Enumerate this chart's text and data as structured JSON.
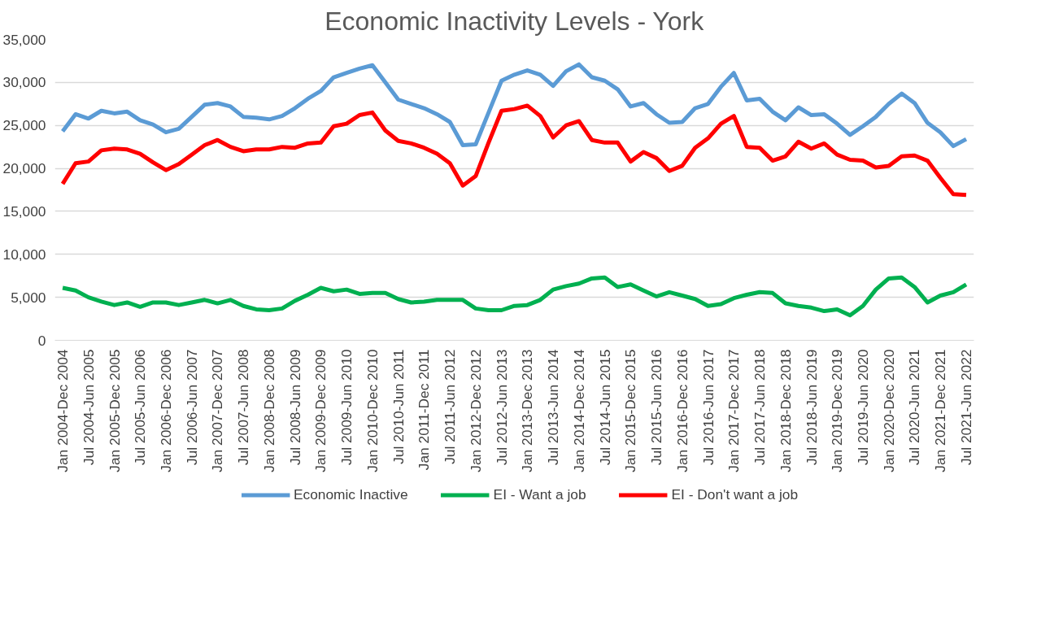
{
  "chart_data": {
    "type": "line",
    "title": "Economic Inactivity Levels - York",
    "categories": [
      "Jan 2004-Dec 2004",
      null,
      "Jul 2004-Jun 2005",
      null,
      "Jan 2005-Dec 2005",
      null,
      "Jul 2005-Jun 2006",
      null,
      "Jan 2006-Dec 2006",
      null,
      "Jul 2006-Jun 2007",
      null,
      "Jan 2007-Dec 2007",
      null,
      "Jul 2007-Jun 2008",
      null,
      "Jan 2008-Dec 2008",
      null,
      "Jul 2008-Jun 2009",
      null,
      "Jan 2009-Dec 2009",
      null,
      "Jul 2009-Jun 2010",
      null,
      "Jan 2010-Dec 2010",
      null,
      "Jul 2010-Jun 2011",
      null,
      "Jan 2011-Dec 2011",
      null,
      "Jul 2011-Jun 2012",
      null,
      "Jan 2012-Dec 2012",
      null,
      "Jul 2012-Jun 2013",
      null,
      "Jan 2013-Dec 2013",
      null,
      "Jul 2013-Jun 2014",
      null,
      "Jan 2014-Dec 2014",
      null,
      "Jul 2014-Jun 2015",
      null,
      "Jan 2015-Dec 2015",
      null,
      "Jul 2015-Jun 2016",
      null,
      "Jan 2016-Dec 2016",
      null,
      "Jul 2016-Jun 2017",
      null,
      "Jan 2017-Dec 2017",
      null,
      "Jul 2017-Jun 2018",
      null,
      "Jan 2018-Dec 2018",
      null,
      "Jul 2018-Jun 2019",
      null,
      "Jan 2019-Dec 2019",
      null,
      "Jul 2019-Jun 2020",
      null,
      "Jan 2020-Dec 2020",
      null,
      "Jul 2020-Jun 2021",
      null,
      "Jan 2021-Dec 2021",
      null,
      "Jul 2021-Jun 2022"
    ],
    "series": [
      {
        "name": "Economic Inactive",
        "color": "#5b9bd5",
        "values": [
          24300,
          26300,
          25800,
          26700,
          26400,
          26600,
          25600,
          25100,
          24200,
          24600,
          26000,
          27400,
          27600,
          27200,
          26000,
          25900,
          25700,
          26100,
          27000,
          28100,
          29000,
          30600,
          31100,
          31600,
          32000,
          30000,
          28000,
          27500,
          27000,
          26300,
          25400,
          22700,
          22800,
          26500,
          30200,
          30900,
          31400,
          30900,
          29600,
          31300,
          32100,
          30600,
          30200,
          29200,
          27200,
          27600,
          26300,
          25300,
          25400,
          27000,
          27500,
          29500,
          31100,
          27900,
          28100,
          26600,
          25600,
          27100,
          26200,
          26300,
          25200,
          23900,
          24900,
          26000,
          27500,
          28700,
          27600,
          25300,
          24200,
          22600,
          23400
        ]
      },
      {
        "name": "EI - Want a job",
        "color": "#00b050",
        "values": [
          6100,
          5800,
          5000,
          4500,
          4100,
          4400,
          3900,
          4400,
          4400,
          4100,
          4400,
          4700,
          4300,
          4700,
          4000,
          3600,
          3500,
          3700,
          4600,
          5300,
          6100,
          5700,
          5900,
          5400,
          5500,
          5500,
          4800,
          4400,
          4500,
          4700,
          4700,
          4700,
          3700,
          3500,
          3500,
          4000,
          4100,
          4700,
          5900,
          6300,
          6600,
          7200,
          7300,
          6200,
          6500,
          5800,
          5100,
          5600,
          5200,
          4800,
          4000,
          4200,
          4900,
          5300,
          5600,
          5500,
          4300,
          4000,
          3800,
          3400,
          3600,
          2900,
          4000,
          5900,
          7200,
          7300,
          6200,
          4400,
          5200,
          5600,
          6500
        ]
      },
      {
        "name": "EI - Don't want a job",
        "color": "#ff0000",
        "values": [
          18200,
          20600,
          20800,
          22100,
          22300,
          22200,
          21700,
          20700,
          19800,
          20500,
          21600,
          22700,
          23300,
          22500,
          22000,
          22200,
          22200,
          22500,
          22400,
          22900,
          23000,
          24900,
          25200,
          26200,
          26500,
          24400,
          23200,
          22900,
          22400,
          21700,
          20600,
          18000,
          19100,
          23000,
          26700,
          26900,
          27300,
          26100,
          23600,
          25000,
          25500,
          23300,
          23000,
          23000,
          20800,
          21900,
          21200,
          19700,
          20300,
          22400,
          23500,
          25200,
          26100,
          22500,
          22400,
          20900,
          21400,
          23100,
          22300,
          22900,
          21600,
          21000,
          20900,
          20100,
          20300,
          21400,
          21500,
          20900,
          18900,
          17000,
          16900
        ]
      }
    ],
    "ylim": [
      0,
      35000
    ],
    "yticks": [
      0,
      {
        "value": 5000,
        "label": "5,000"
      },
      {
        "value": 10000,
        "label": "10,000"
      },
      {
        "value": 15000,
        "label": "15,000"
      },
      {
        "value": 20000,
        "label": "20,000"
      },
      {
        "value": 25000,
        "label": "25,000"
      },
      {
        "value": 30000,
        "label": "30,000"
      },
      {
        "value": 35000,
        "label": "35,000"
      }
    ],
    "grid": "y",
    "legend": "bottom",
    "marker": "none",
    "line_style": "solid"
  }
}
